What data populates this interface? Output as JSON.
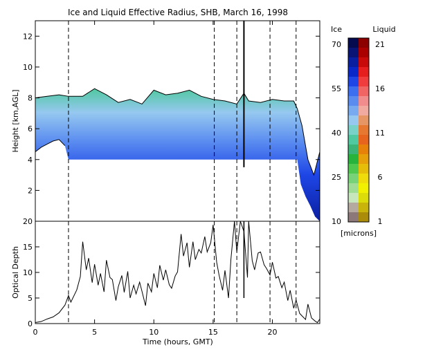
{
  "title": "Ice and Liquid Effective Radius, SHB, March 16, 1998",
  "chart_data": [
    {
      "type": "heatmap",
      "title": "Ice and Liquid Effective Radius, SHB, March 16, 1998",
      "xlabel": "",
      "ylabel": "Height [km,AGL]",
      "xlim": [
        0,
        24
      ],
      "ylim": [
        0,
        13
      ],
      "yticks": [
        2,
        4,
        6,
        8,
        10,
        12
      ],
      "event_lines_hours": [
        2.8,
        15.1,
        17.0,
        19.8,
        22.0
      ],
      "vertical_marker_hours": [
        17.6
      ],
      "cloud_top_km": {
        "x": [
          0,
          1,
          2,
          2.8,
          4,
          5,
          6,
          7,
          8,
          9,
          10,
          11,
          12,
          13,
          14,
          15,
          16,
          17,
          17.6,
          18,
          19,
          20,
          21,
          21.8,
          22.1,
          22.5,
          23,
          23.5,
          24
        ],
        "y": [
          8.0,
          8.1,
          8.2,
          8.1,
          8.1,
          8.6,
          8.2,
          7.7,
          7.9,
          7.6,
          8.5,
          8.2,
          8.3,
          8.5,
          8.1,
          7.9,
          7.8,
          7.6,
          8.3,
          7.8,
          7.7,
          7.9,
          7.8,
          7.8,
          7.3,
          6.2,
          4.0,
          3.0,
          4.5
        ]
      },
      "cloud_base_km": {
        "x": [
          0,
          0.5,
          1,
          1.5,
          2,
          2.5,
          2.8,
          22.1,
          22.4,
          22.8,
          23.2,
          23.6,
          24
        ],
        "y": [
          4.5,
          4.8,
          5.0,
          5.2,
          5.3,
          4.9,
          4.0,
          4.0,
          2.4,
          1.6,
          1.0,
          0.3,
          0.0
        ]
      },
      "lower_data_cutoff_km": 4.0,
      "color_scale": {
        "ice_label": "Ice",
        "liquid_label": "Liquid",
        "units_label": "[microns]",
        "ice_ticks": [
          "70",
          "55",
          "40",
          "25",
          "10"
        ],
        "liquid_ticks": [
          "21",
          "16",
          "11",
          "6",
          "1"
        ],
        "ice_colors": [
          "#060a4e",
          "#0a1474",
          "#0a1ea0",
          "#0a28c8",
          "#1e46e6",
          "#3c6ef0",
          "#5a8cf0",
          "#78aaf0",
          "#96c8f0",
          "#78d2c8",
          "#50c8a0",
          "#3cb478",
          "#28b43c",
          "#50c850",
          "#78d278",
          "#a0dc96",
          "#c8e6be",
          "#b4aaa0",
          "#8c7878"
        ],
        "liquid_colors": [
          "#8c0000",
          "#aa0000",
          "#c80a0a",
          "#e61e1e",
          "#f03c3c",
          "#f06464",
          "#f08c8c",
          "#f0aaa0",
          "#e69664",
          "#e67832",
          "#e6641e",
          "#e6820a",
          "#e6a00a",
          "#e6be0a",
          "#f0dc0a",
          "#f0f000",
          "#dcdc0a",
          "#c8b40a",
          "#aa8c0a"
        ]
      }
    },
    {
      "type": "line",
      "title": "",
      "xlabel": "Time (hours, GMT)",
      "ylabel": "Optical Depth",
      "xlim": [
        0,
        24
      ],
      "ylim": [
        0,
        20
      ],
      "xticks": [
        0,
        5,
        10,
        15,
        20
      ],
      "yticks": [
        0,
        5,
        10,
        15,
        20
      ],
      "x": [
        0,
        0.5,
        1.0,
        1.5,
        2.0,
        2.5,
        2.8,
        3.0,
        3.5,
        3.8,
        4.0,
        4.3,
        4.5,
        4.8,
        5.0,
        5.3,
        5.5,
        5.8,
        6.0,
        6.3,
        6.5,
        6.8,
        7.0,
        7.3,
        7.5,
        7.8,
        8.0,
        8.3,
        8.5,
        8.8,
        9.0,
        9.3,
        9.5,
        9.8,
        10.0,
        10.3,
        10.5,
        10.8,
        11.0,
        11.3,
        11.5,
        11.8,
        12.0,
        12.3,
        12.5,
        12.8,
        13.0,
        13.3,
        13.5,
        13.8,
        14.0,
        14.3,
        14.5,
        14.8,
        15.0,
        15.3,
        15.5,
        15.8,
        16.0,
        16.3,
        16.5,
        16.8,
        17.0,
        17.3,
        17.6,
        17.9,
        18.0,
        18.3,
        18.5,
        18.8,
        19.0,
        19.3,
        19.5,
        19.8,
        20.0,
        20.3,
        20.5,
        20.8,
        21.0,
        21.3,
        21.5,
        21.8,
        22.0,
        22.3,
        22.5,
        22.8,
        23.0,
        23.3,
        23.6,
        23.8,
        24.0
      ],
      "y": [
        0.2,
        0.4,
        0.9,
        1.3,
        2.1,
        3.6,
        5.5,
        4.2,
        6.6,
        9.2,
        16.0,
        10.5,
        12.8,
        8.0,
        11.6,
        7.5,
        9.8,
        6.2,
        12.4,
        9.0,
        8.6,
        4.5,
        7.2,
        9.4,
        6.1,
        10.2,
        5.0,
        7.5,
        5.8,
        8.1,
        6.3,
        3.5,
        7.9,
        6.2,
        9.8,
        7.0,
        11.4,
        8.5,
        10.5,
        7.6,
        6.9,
        9.3,
        10.1,
        17.5,
        13.2,
        15.8,
        11.0,
        16.0,
        12.5,
        14.5,
        13.8,
        17.0,
        14.0,
        15.8,
        19.3,
        12.0,
        9.5,
        6.5,
        10.4,
        5.0,
        12.5,
        20.0,
        14.0,
        20.0,
        18.0,
        9.0,
        20.0,
        12.3,
        10.5,
        13.8,
        14.0,
        11.5,
        10.8,
        9.5,
        12.0,
        8.9,
        9.2,
        7.0,
        8.1,
        4.5,
        6.5,
        3.0,
        4.6,
        2.0,
        1.5,
        0.8,
        3.8,
        1.1,
        0.5,
        0.2,
        0.9
      ]
    }
  ]
}
